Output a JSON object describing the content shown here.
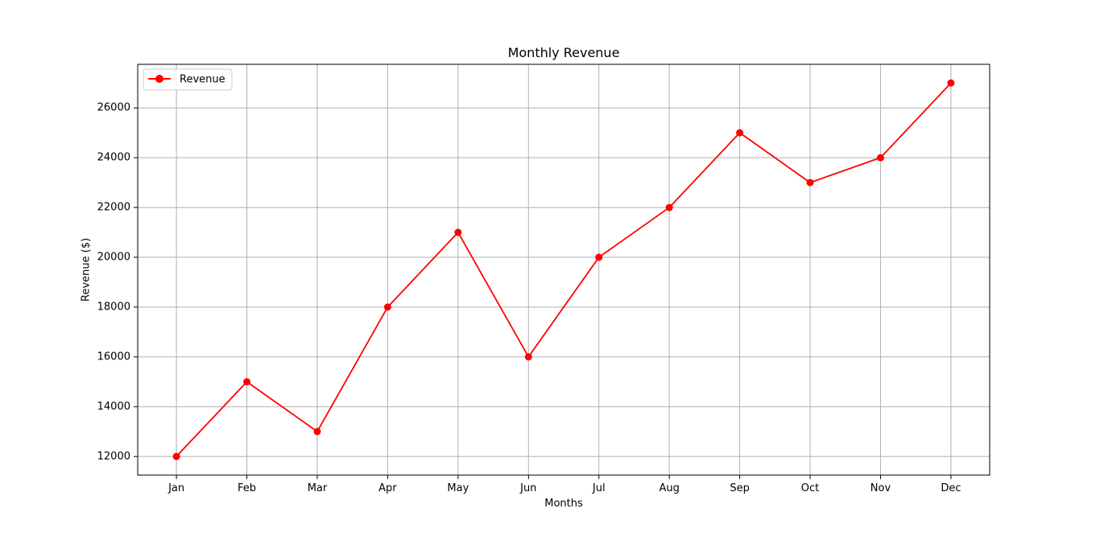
{
  "chart_data": {
    "type": "line",
    "title": "Monthly Revenue",
    "xlabel": "Months",
    "ylabel": "Revenue ($)",
    "categories": [
      "Jan",
      "Feb",
      "Mar",
      "Apr",
      "May",
      "Jun",
      "Jul",
      "Aug",
      "Sep",
      "Oct",
      "Nov",
      "Dec"
    ],
    "series": [
      {
        "name": "Revenue",
        "values": [
          12000,
          15000,
          13000,
          18000,
          21000,
          16000,
          20000,
          22000,
          25000,
          23000,
          24000,
          27000
        ],
        "color": "#ff0000",
        "marker": "circle"
      }
    ],
    "ylim": [
      11250,
      27750
    ],
    "yticks": [
      12000,
      14000,
      16000,
      18000,
      20000,
      22000,
      24000,
      26000
    ],
    "grid": true,
    "legend_position": "top-left"
  }
}
